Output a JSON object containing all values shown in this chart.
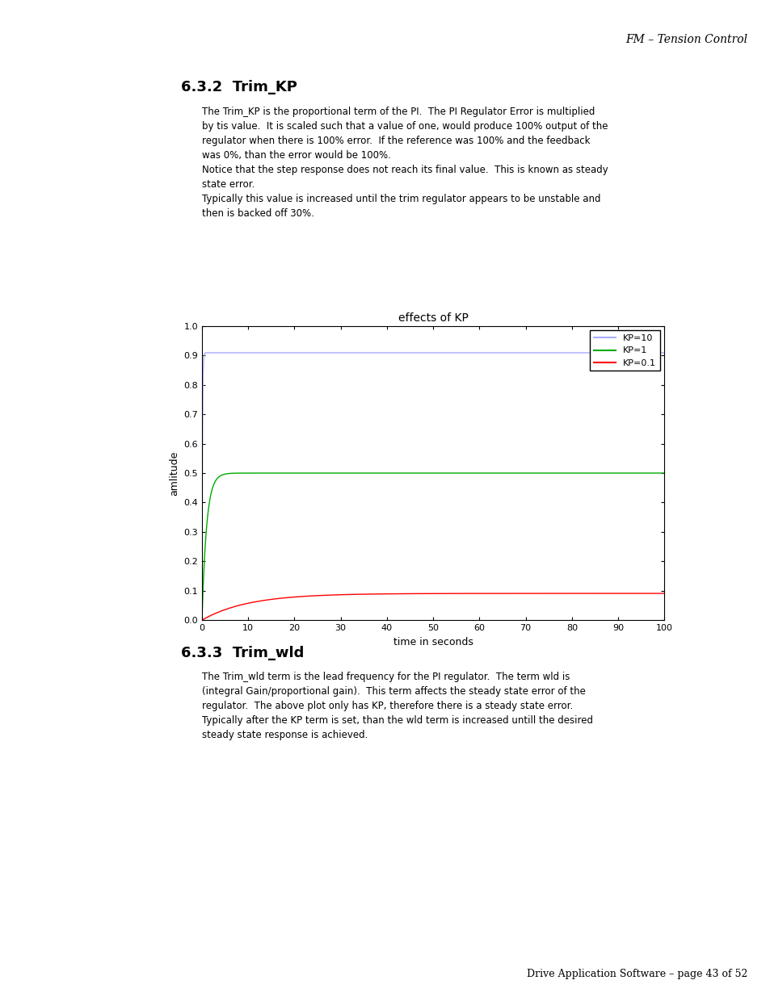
{
  "page_header": "FM – Tension Control",
  "page_footer": "Drive Application Software – page 43 of 52",
  "section_title": "6.3.2  Trim_KP",
  "section_body": [
    "The Trim_KP is the proportional term of the PI.  The PI Regulator Error is multiplied",
    "by tis value.  It is scaled such that a value of one, would produce 100% output of the",
    "regulator when there is 100% error.  If the reference was 100% and the feedback",
    "was 0%, than the error would be 100%.",
    "Notice that the step response does not reach its final value.  This is known as steady",
    "state error.",
    "Typically this value is increased until the trim regulator appears to be unstable and",
    "then is backed off 30%."
  ],
  "plot_title": "effects of KP",
  "plot_xlabel": "time in seconds",
  "plot_ylabel": "amlitude",
  "plot_xlim": [
    0,
    100
  ],
  "plot_ylim": [
    0,
    1
  ],
  "plot_yticks": [
    0,
    0.1,
    0.2,
    0.3,
    0.4,
    0.5,
    0.6,
    0.7,
    0.8,
    0.9,
    1
  ],
  "plot_xticks": [
    0,
    10,
    20,
    30,
    40,
    50,
    60,
    70,
    80,
    90,
    100
  ],
  "legend_labels": [
    "KP=10",
    "KP=1",
    "KP=0.1"
  ],
  "legend_colors": [
    "#aaaaff",
    "#00aa00",
    "#ff0000"
  ],
  "kp_values": [
    10,
    1,
    0.1
  ],
  "section2_title": "6.3.3  Trim_wld",
  "section2_body": [
    "The Trim_wld term is the lead frequency for the PI regulator.  The term wld is",
    "(integral Gain/proportional gain).  This term affects the steady state error of the",
    "regulator.  The above plot only has KP, therefore there is a steady state error.",
    "Typically after the KP term is set, than the wld term is increased untill the desired",
    "steady state response is achieved."
  ],
  "background_color": "#ffffff",
  "text_color": "#000000"
}
